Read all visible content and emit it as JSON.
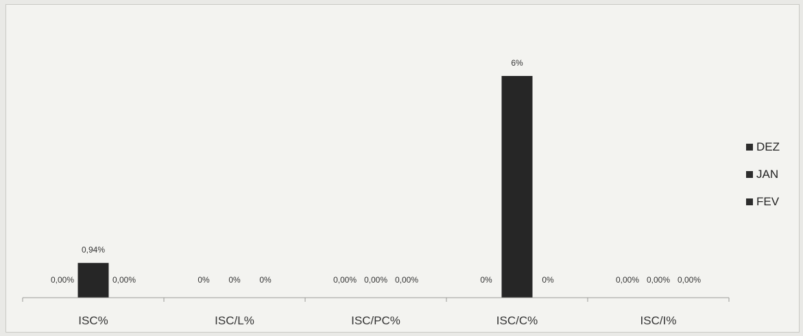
{
  "chart_data": {
    "type": "bar",
    "categories": [
      "ISC%",
      "ISC/L%",
      "ISC/PC%",
      "ISC/C%",
      "ISC/I%"
    ],
    "series": [
      {
        "name": "DEZ",
        "values": [
          0,
          0,
          0,
          0,
          0
        ],
        "labels": [
          "0,00%",
          "0%",
          "0,00%",
          "0%",
          "0,00%"
        ]
      },
      {
        "name": "JAN",
        "values": [
          0.94,
          0,
          0,
          6,
          0
        ],
        "labels": [
          "0,94%",
          "0%",
          "0,00%",
          "6%",
          "0,00%"
        ]
      },
      {
        "name": "FEV",
        "values": [
          0,
          0,
          0,
          0,
          0
        ],
        "labels": [
          "0,00%",
          "0%",
          "0,00%",
          "0%",
          "0,00%"
        ]
      }
    ],
    "ylim": [
      0,
      7
    ],
    "grid": false,
    "legend_position": "right",
    "colors": {
      "DEZ": "#2f2f2f",
      "JAN": "#262626",
      "FEV": "#303030"
    }
  }
}
